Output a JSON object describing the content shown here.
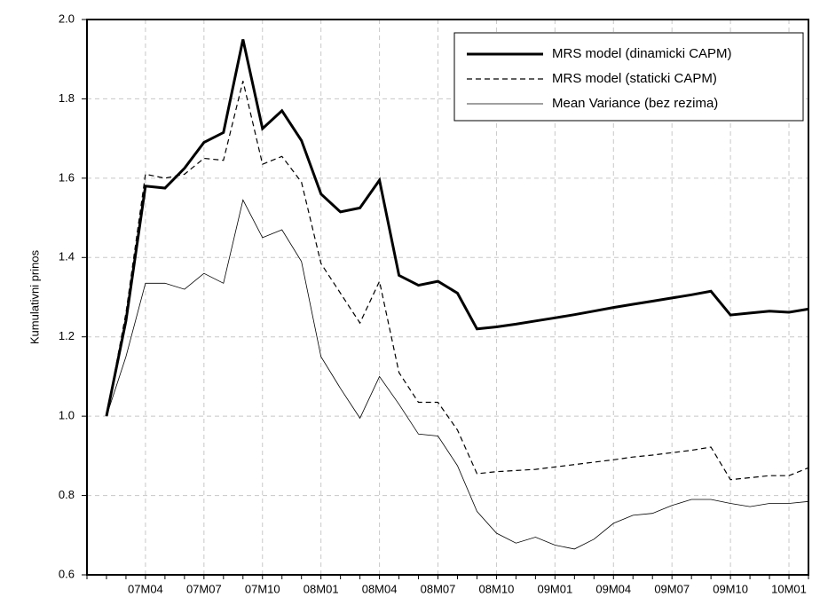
{
  "chart_data": {
    "type": "line",
    "y_label": "Kumulativni prinos",
    "categories": [
      null,
      null,
      null,
      "07M04",
      null,
      null,
      "07M07",
      null,
      null,
      "07M10",
      null,
      null,
      "08M01",
      null,
      null,
      "08M04",
      null,
      null,
      "08M07",
      null,
      null,
      "08M10",
      null,
      null,
      "09M01",
      null,
      null,
      "09M04",
      null,
      null,
      "09M07",
      null,
      null,
      "09M10",
      null,
      null,
      "10M01",
      null
    ],
    "series": [
      {
        "name": "MRS model (dinamicki CAPM)",
        "color": "#000000",
        "line_width": 3,
        "dash": false,
        "values": [
          null,
          1.0,
          1.24,
          1.58,
          1.575,
          1.625,
          1.69,
          1.715,
          1.95,
          1.725,
          1.77,
          1.695,
          1.56,
          1.515,
          1.525,
          1.595,
          1.355,
          1.33,
          1.34,
          1.31,
          1.22,
          1.225,
          1.232,
          1.24,
          1.248,
          1.256,
          1.265,
          1.274,
          1.282,
          1.29,
          1.298,
          1.306,
          1.315,
          1.255,
          1.26,
          1.265,
          1.262,
          1.27
        ]
      },
      {
        "name": "MRS model (staticki CAPM)",
        "color": "#000000",
        "line_width": 1.2,
        "dash": true,
        "values": [
          null,
          1.0,
          1.26,
          1.61,
          1.6,
          1.61,
          1.65,
          1.645,
          1.845,
          1.635,
          1.655,
          1.59,
          1.385,
          1.31,
          1.235,
          1.34,
          1.11,
          1.035,
          1.035,
          0.965,
          0.855,
          0.86,
          0.863,
          0.866,
          0.872,
          0.878,
          0.884,
          0.89,
          0.897,
          0.902,
          0.908,
          0.914,
          0.922,
          0.84,
          0.845,
          0.85,
          0.85,
          0.87
        ]
      },
      {
        "name": "Mean Variance (bez rezima)",
        "color": "#000000",
        "line_width": 0.8,
        "dash": false,
        "values": [
          null,
          1.0,
          1.15,
          1.335,
          1.335,
          1.32,
          1.36,
          1.335,
          1.545,
          1.45,
          1.47,
          1.39,
          1.15,
          1.07,
          0.995,
          1.1,
          1.03,
          0.955,
          0.95,
          0.875,
          0.76,
          0.705,
          0.68,
          0.695,
          0.675,
          0.665,
          0.69,
          0.73,
          0.75,
          0.755,
          0.775,
          0.79,
          0.79,
          0.78,
          0.772,
          0.78,
          0.78,
          0.785
        ]
      }
    ],
    "ylim": [
      0.6,
      2.0
    ],
    "yticks": [
      0.6,
      0.8,
      {
        "value": 1,
        "label": "1.0"
      },
      1.2,
      1.4,
      1.6,
      1.8,
      {
        "value": 2,
        "label": "2.0"
      }
    ],
    "grid": true,
    "legend": "upper right"
  }
}
